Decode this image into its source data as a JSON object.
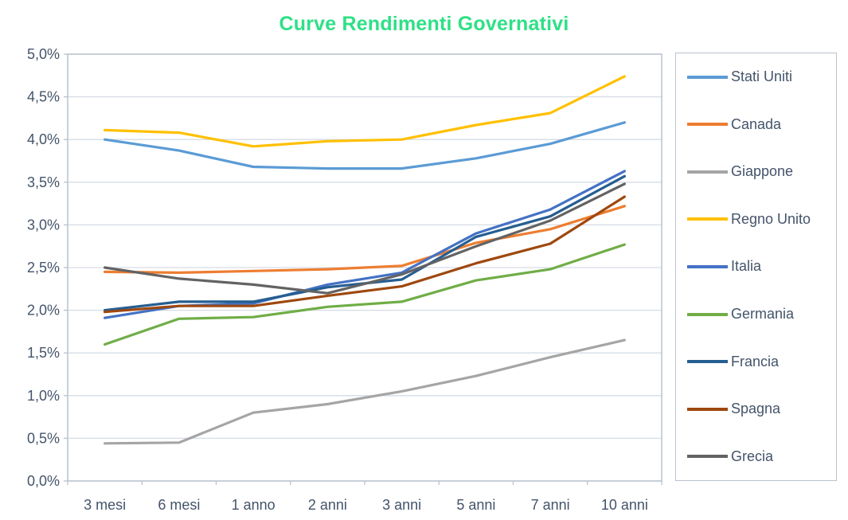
{
  "title": "Curve Rendimenti Governativi",
  "styles": {
    "title_color": "#2ee086",
    "axis_label_color": "#44546a",
    "grid_color": "#d6dce5",
    "plot_border_color": "#b9c2cc",
    "background_color": "#ffffff"
  },
  "chart_data": {
    "type": "line",
    "title": "Curve Rendimenti Governativi",
    "xlabel": "",
    "ylabel": "",
    "grid": true,
    "legend_position": "right",
    "categories": [
      "3 mesi",
      "6 mesi",
      "1 anno",
      "2 anni",
      "3 anni",
      "5 anni",
      "7 anni",
      "10 anni"
    ],
    "y_axis": {
      "min": 0,
      "max": 5,
      "step": 0.5,
      "unit": "%",
      "tick_labels": [
        "0,0%",
        "0,5%",
        "1,0%",
        "1,5%",
        "2,0%",
        "2,5%",
        "3,0%",
        "3,5%",
        "4,0%",
        "4,5%",
        "5,0%"
      ]
    },
    "series": [
      {
        "name": "Stati Uniti",
        "color": "#5b9bd5",
        "values": [
          4.0,
          3.87,
          3.68,
          3.66,
          3.66,
          3.78,
          3.95,
          4.2
        ]
      },
      {
        "name": "Canada",
        "color": "#ed7d31",
        "values": [
          2.45,
          2.44,
          2.46,
          2.48,
          2.52,
          2.79,
          2.95,
          3.22
        ]
      },
      {
        "name": "Giappone",
        "color": "#a5a5a5",
        "values": [
          0.44,
          0.45,
          0.8,
          0.9,
          1.05,
          1.23,
          1.45,
          1.65
        ]
      },
      {
        "name": "Regno Unito",
        "color": "#ffc000",
        "values": [
          4.11,
          4.08,
          3.92,
          3.98,
          4.0,
          4.17,
          4.31,
          4.74
        ]
      },
      {
        "name": "Italia",
        "color": "#4472c4",
        "values": [
          1.91,
          2.05,
          2.08,
          2.3,
          2.44,
          2.9,
          3.18,
          3.63
        ]
      },
      {
        "name": "Germania",
        "color": "#70ad47",
        "values": [
          1.6,
          1.9,
          1.92,
          2.04,
          2.1,
          2.35,
          2.48,
          2.77
        ]
      },
      {
        "name": "Francia",
        "color": "#255e91",
        "values": [
          2.0,
          2.1,
          2.1,
          2.27,
          2.36,
          2.86,
          3.1,
          3.57
        ]
      },
      {
        "name": "Spagna",
        "color": "#9e480e",
        "values": [
          1.98,
          2.05,
          2.05,
          2.17,
          2.28,
          2.55,
          2.78,
          3.33
        ]
      },
      {
        "name": "Grecia",
        "color": "#636363",
        "values": [
          2.5,
          2.37,
          2.3,
          2.2,
          2.42,
          2.75,
          3.05,
          3.48
        ]
      }
    ]
  }
}
